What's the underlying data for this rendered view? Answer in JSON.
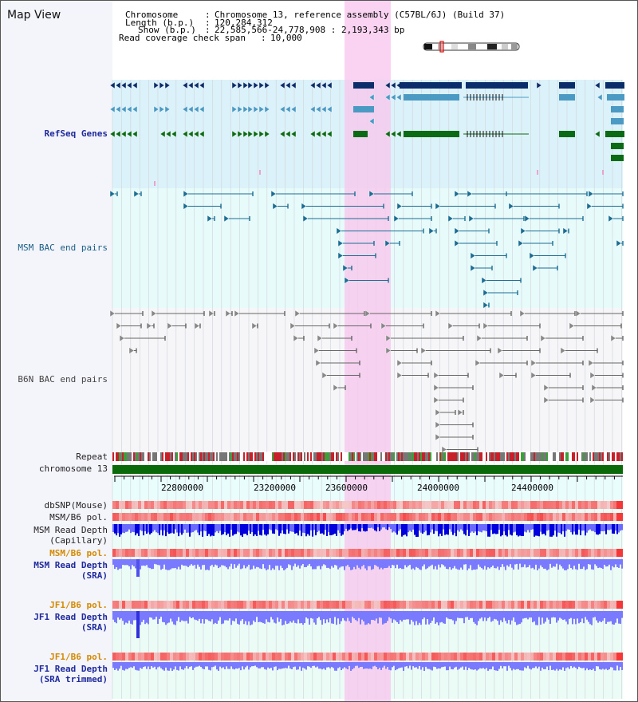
{
  "view": {
    "title": "Map View"
  },
  "header": {
    "chromosome_key": "Chromosome",
    "chromosome_value": "Chromosome 13, reference assembly (C57BL/6J) (Build 37)",
    "length_key": "Length (b.p.)",
    "length_value": "120,284,312",
    "show_key": "Show (b.p.)",
    "show_value": "22,585,566-24,778,908 : 2,193,343 bp",
    "coverage_key": "Read coverage check span",
    "coverage_value": "10,000",
    "sep": ":"
  },
  "tracks": {
    "refseq": "RefSeq Genes",
    "msm_bac": "MSM BAC end pairs",
    "b6n_bac": "B6N BAC end pairs",
    "repeat": "Repeat",
    "chromosome": "chromosome 13",
    "dbsnp": "dbSNP(Mouse)",
    "msm_b6_pol_1": "MSM/B6 pol.",
    "msm_depth_cap_1": "MSM Read Depth",
    "msm_depth_cap_2": "(Capillary)",
    "msm_b6_pol_2": "MSM/B6 pol.",
    "msm_depth_sra_1": "MSM Read Depth",
    "msm_depth_sra_2": "(SRA)",
    "jf1_b6_pol_1": "JF1/B6 pol.",
    "jf1_depth_sra_1": "JF1 Read Depth",
    "jf1_depth_sra_2": "(SRA)",
    "jf1_b6_pol_2": "JF1/B6 pol.",
    "jf1_depth_trim_1": "JF1 Read Depth",
    "jf1_depth_trim_2": "(SRA trimmed)"
  },
  "axis": {
    "ticks": [
      "22800000",
      "23200000",
      "23600000",
      "24000000",
      "24400000"
    ]
  },
  "colors": {
    "refseq_dark": "#0b2e6b",
    "refseq_light": "#4a9ac4",
    "refseq_green": "#0b6b14",
    "msm_bac": "#1b6e93",
    "b6n_bac": "#555555",
    "highlight": "#f7c8ee",
    "chromosome_bar": "#0a6a0a",
    "depth_dark": "#0000dd",
    "depth_light": "#7a7aff"
  }
}
